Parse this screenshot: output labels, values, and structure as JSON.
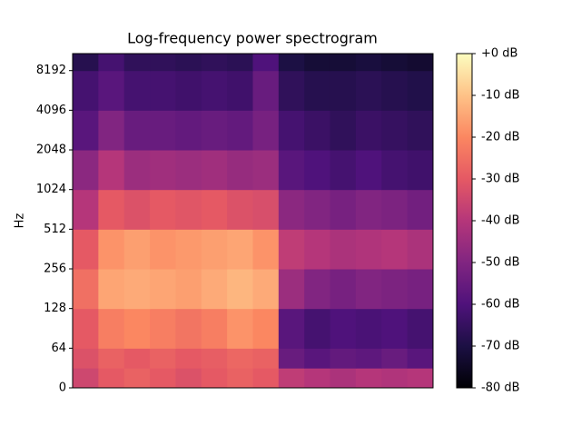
{
  "chart_data": {
    "type": "heatmap",
    "title": "Log-frequency power spectrogram",
    "ylabel": "Hz",
    "yscale": "symlog",
    "linthresh": 64,
    "ylim": [
      0,
      11025
    ],
    "yticks": [
      0,
      64,
      128,
      256,
      512,
      1024,
      2048,
      4096,
      8192
    ],
    "categories": [
      null,
      null,
      null,
      null,
      null,
      null,
      null,
      null,
      null,
      null,
      null,
      null,
      null,
      null
    ],
    "y_edges": [
      0,
      32,
      64,
      128,
      256,
      512,
      1024,
      2048,
      4096,
      8192,
      11025
    ],
    "z": [
      [
        -35,
        -30,
        -28,
        -30,
        -32,
        -30,
        -28,
        -30,
        -38,
        -40,
        -42,
        -40,
        -41,
        -40
      ],
      [
        -32,
        -28,
        -30,
        -28,
        -30,
        -29,
        -27,
        -28,
        -55,
        -58,
        -56,
        -57,
        -55,
        -58
      ],
      [
        -30,
        -22,
        -20,
        -22,
        -24,
        -22,
        -18,
        -20,
        -58,
        -62,
        -60,
        -61,
        -60,
        -62
      ],
      [
        -25,
        -15,
        -14,
        -15,
        -16,
        -14,
        -12,
        -14,
        -45,
        -50,
        -52,
        -50,
        -51,
        -52
      ],
      [
        -30,
        -18,
        -16,
        -18,
        -17,
        -16,
        -15,
        -18,
        -38,
        -40,
        -42,
        -41,
        -40,
        -42
      ],
      [
        -40,
        -30,
        -32,
        -30,
        -31,
        -30,
        -32,
        -33,
        -48,
        -50,
        -52,
        -50,
        -51,
        -53
      ],
      [
        -48,
        -40,
        -45,
        -44,
        -45,
        -44,
        -46,
        -45,
        -58,
        -60,
        -62,
        -60,
        -62,
        -63
      ],
      [
        -58,
        -50,
        -55,
        -55,
        -56,
        -55,
        -56,
        -52,
        -62,
        -64,
        -66,
        -64,
        -65,
        -66
      ],
      [
        -62,
        -58,
        -62,
        -62,
        -63,
        -62,
        -63,
        -55,
        -66,
        -68,
        -68,
        -67,
        -68,
        -69
      ],
      [
        -68,
        -62,
        -66,
        -66,
        -67,
        -66,
        -67,
        -60,
        -70,
        -72,
        -72,
        -71,
        -72,
        -73
      ]
    ],
    "colormap": [
      "#000004",
      "#1c1044",
      "#4f127b",
      "#812581",
      "#b5367a",
      "#e55964",
      "#fb8761",
      "#fec287",
      "#fcfdbf"
    ],
    "clim": [
      -80,
      0
    ],
    "cticks": [
      {
        "value": 0,
        "label": "+0 dB"
      },
      {
        "value": -10,
        "label": "-10 dB"
      },
      {
        "value": -20,
        "label": "-20 dB"
      },
      {
        "value": -30,
        "label": "-30 dB"
      },
      {
        "value": -40,
        "label": "-40 dB"
      },
      {
        "value": -50,
        "label": "-50 dB"
      },
      {
        "value": -60,
        "label": "-60 dB"
      },
      {
        "value": -70,
        "label": "-70 dB"
      },
      {
        "value": -80,
        "label": "-80 dB"
      }
    ]
  }
}
